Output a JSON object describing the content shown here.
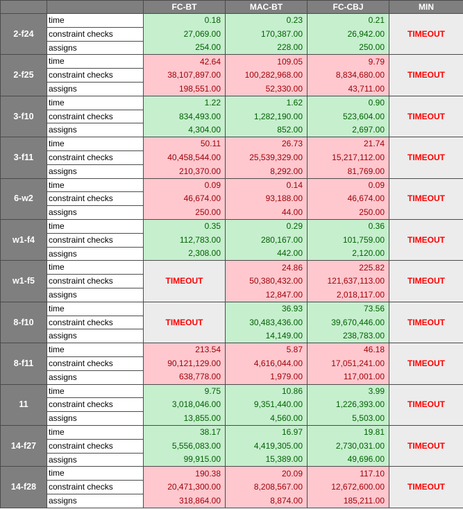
{
  "headers": [
    "",
    "",
    "FC-BT",
    "MAC-BT",
    "FC-CBJ",
    "MIN"
  ],
  "metrics": [
    "time",
    "constraint checks",
    "assigns"
  ],
  "timeout_label": "TIMEOUT",
  "colors": {
    "good_bg": "#c6efce",
    "good_fg": "#006100",
    "bad_bg": "#ffc7ce",
    "bad_fg": "#9c0006",
    "header_bg": "#7f7f7f",
    "timeout_fg": "#ff0000"
  },
  "groups": [
    {
      "name": "2-f24",
      "status": "good",
      "cols": [
        {
          "t": [
            "0.18",
            "27,069.00",
            "254.00"
          ]
        },
        {
          "t": [
            "0.23",
            "170,387.00",
            "228.00"
          ]
        },
        {
          "t": [
            "0.21",
            "26,942.00",
            "250.00"
          ]
        },
        {
          "timeout": true
        }
      ]
    },
    {
      "name": "2-f25",
      "status": "bad",
      "cols": [
        {
          "t": [
            "42.64",
            "38,107,897.00",
            "198,551.00"
          ]
        },
        {
          "t": [
            "109.05",
            "100,282,968.00",
            "52,330.00"
          ]
        },
        {
          "t": [
            "9.79",
            "8,834,680.00",
            "43,711.00"
          ]
        },
        {
          "timeout": true
        }
      ]
    },
    {
      "name": "3-f10",
      "status": "good",
      "cols": [
        {
          "t": [
            "1.22",
            "834,493.00",
            "4,304.00"
          ]
        },
        {
          "t": [
            "1.62",
            "1,282,190.00",
            "852.00"
          ]
        },
        {
          "t": [
            "0.90",
            "523,604.00",
            "2,697.00"
          ]
        },
        {
          "timeout": true
        }
      ]
    },
    {
      "name": "3-f11",
      "status": "bad",
      "cols": [
        {
          "t": [
            "50.11",
            "40,458,544.00",
            "210,370.00"
          ]
        },
        {
          "t": [
            "26.73",
            "25,539,329.00",
            "8,292.00"
          ]
        },
        {
          "t": [
            "21.74",
            "15,217,112.00",
            "81,769.00"
          ]
        },
        {
          "timeout": true
        }
      ]
    },
    {
      "name": "6-w2",
      "status": "bad",
      "cols": [
        {
          "t": [
            "0.09",
            "46,674.00",
            "250.00"
          ]
        },
        {
          "t": [
            "0.14",
            "93,188.00",
            "44.00"
          ]
        },
        {
          "t": [
            "0.09",
            "46,674.00",
            "250.00"
          ]
        },
        {
          "timeout": true
        }
      ]
    },
    {
      "name": "w1-f4",
      "status": "good",
      "cols": [
        {
          "t": [
            "0.35",
            "112,783.00",
            "2,308.00"
          ]
        },
        {
          "t": [
            "0.29",
            "280,167.00",
            "442.00"
          ]
        },
        {
          "t": [
            "0.36",
            "101,759.00",
            "2,120.00"
          ]
        },
        {
          "timeout": true
        }
      ]
    },
    {
      "name": "w1-f5",
      "status": "bad",
      "cols": [
        {
          "timeout": true
        },
        {
          "t": [
            "24.86",
            "50,380,432.00",
            "12,847.00"
          ]
        },
        {
          "t": [
            "225.82",
            "121,637,113.00",
            "2,018,117.00"
          ]
        },
        {
          "timeout": true
        }
      ]
    },
    {
      "name": "8-f10",
      "status": "good",
      "cols": [
        {
          "timeout": true
        },
        {
          "t": [
            "36.93",
            "30,483,436.00",
            "14,149.00"
          ]
        },
        {
          "t": [
            "73.56",
            "39,670,446.00",
            "238,783.00"
          ]
        },
        {
          "timeout": true
        }
      ]
    },
    {
      "name": "8-f11",
      "status": "bad",
      "cols": [
        {
          "t": [
            "213.54",
            "90,121,129.00",
            "638,778.00"
          ]
        },
        {
          "t": [
            "5.87",
            "4,616,044.00",
            "1,979.00"
          ]
        },
        {
          "t": [
            "46.18",
            "17,051,241.00",
            "117,001.00"
          ]
        },
        {
          "timeout": true
        }
      ]
    },
    {
      "name": "11",
      "status": "good",
      "cols": [
        {
          "t": [
            "9.75",
            "3,018,046.00",
            "13,855.00"
          ]
        },
        {
          "t": [
            "10.86",
            "9,351,440.00",
            "4,560.00"
          ]
        },
        {
          "t": [
            "3.99",
            "1,226,393.00",
            "5,503.00"
          ]
        },
        {
          "timeout": true
        }
      ]
    },
    {
      "name": "14-f27",
      "status": "good",
      "cols": [
        {
          "t": [
            "38.17",
            "5,556,083.00",
            "99,915.00"
          ]
        },
        {
          "t": [
            "16.97",
            "4,419,305.00",
            "15,389.00"
          ]
        },
        {
          "t": [
            "19.81",
            "2,730,031.00",
            "49,696.00"
          ]
        },
        {
          "timeout": true
        }
      ]
    },
    {
      "name": "14-f28",
      "status": "bad",
      "cols": [
        {
          "t": [
            "190.38",
            "20,471,300.00",
            "318,864.00"
          ]
        },
        {
          "t": [
            "20.09",
            "8,208,567.00",
            "8,874.00"
          ]
        },
        {
          "t": [
            "117.10",
            "12,672,600.00",
            "185,211.00"
          ]
        },
        {
          "timeout": true
        }
      ]
    }
  ]
}
